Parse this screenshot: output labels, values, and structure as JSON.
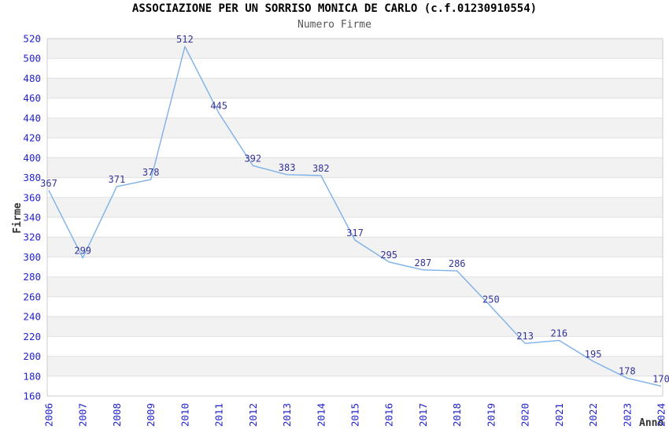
{
  "header": {
    "title": "ASSOCIAZIONE PER UN SORRISO MONICA DE CARLO (c.f.01230910554)",
    "subtitle": "Numero Firme"
  },
  "chart_data": {
    "type": "line",
    "title": "ASSOCIAZIONE PER UN SORRISO MONICA DE CARLO (c.f.01230910554)",
    "subtitle": "Numero Firme",
    "xlabel": "Anno",
    "ylabel": "Firme",
    "x": [
      "2006",
      "2007",
      "2008",
      "2009",
      "2010",
      "2011",
      "2012",
      "2013",
      "2014",
      "2015",
      "2016",
      "2017",
      "2018",
      "2019",
      "2020",
      "2021",
      "2022",
      "2023",
      "2024"
    ],
    "series": [
      {
        "name": "Numero Firme",
        "values": [
          367,
          299,
          371,
          378,
          512,
          445,
          392,
          383,
          382,
          317,
          295,
          287,
          286,
          250,
          213,
          216,
          195,
          178,
          170
        ]
      }
    ],
    "ylim": [
      160,
      520
    ],
    "ytick_step": 20,
    "grid": "horizontal",
    "band_fill": "alternating",
    "legend_position": "none",
    "data_labels": "above-points",
    "x_tick_rotation": -90,
    "colors": {
      "line": "#7eb1e7",
      "tick_label": "#2222cc",
      "data_label": "#333399",
      "band": "#f2f2f2",
      "grid": "#e0e0e0",
      "border": "#cccccc",
      "title": "#000000",
      "subtitle": "#555555",
      "axis_title": "#333333"
    }
  }
}
